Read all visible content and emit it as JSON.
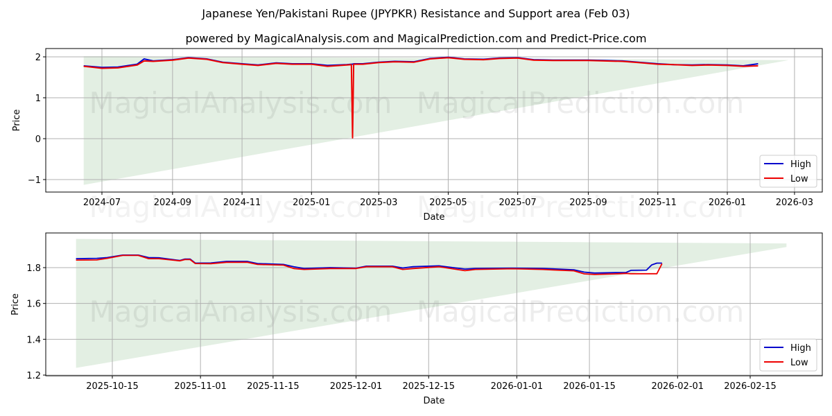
{
  "title": "Japanese Yen/Pakistani Rupee (JPYPKR) Resistance and Support area (Feb 03)",
  "subtitle": "powered by MagicalAnalysis.com and MagicalPrediction.com and Predict-Price.com",
  "watermark": [
    "MagicalAnalysis.com",
    "MagicalPrediction.com"
  ],
  "colors": {
    "high": "#0000cc",
    "low": "#ee0000",
    "band": "#e3efe3",
    "grid": "#b0b0b0"
  },
  "legend": {
    "high": "High",
    "low": "Low"
  },
  "chart_data": [
    {
      "type": "line",
      "title": "Japanese Yen/Pakistani Rupee (JPYPKR) Resistance and Support area (Feb 03)",
      "xlabel": "Date",
      "ylabel": "Price",
      "ylim": [
        -1.3,
        2.2
      ],
      "yticks": [
        -1,
        0,
        1,
        2
      ],
      "xticks": [
        "2024-07",
        "2024-09",
        "2024-11",
        "2025-01",
        "2025-03",
        "2025-05",
        "2025-07",
        "2025-09",
        "2025-11",
        "2026-01",
        "2026-03"
      ],
      "grid": true,
      "legend_position": "lower right",
      "band": {
        "start": "2024-06-15",
        "end": "2026-02-24",
        "upper_start": 2.02,
        "upper_end": 1.92,
        "lower_start": -1.13,
        "lower_end": 1.92
      },
      "x": [
        "2024-06-15",
        "2024-07-01",
        "2024-07-15",
        "2024-08-01",
        "2024-08-07",
        "2024-08-15",
        "2024-09-01",
        "2024-09-15",
        "2024-10-01",
        "2024-10-15",
        "2024-11-01",
        "2024-11-15",
        "2024-12-01",
        "2024-12-15",
        "2025-01-01",
        "2025-01-15",
        "2025-02-01",
        "2025-02-05",
        "2025-02-06",
        "2025-02-07",
        "2025-02-15",
        "2025-03-01",
        "2025-03-15",
        "2025-04-01",
        "2025-04-15",
        "2025-05-01",
        "2025-05-15",
        "2025-06-01",
        "2025-06-15",
        "2025-07-01",
        "2025-07-15",
        "2025-08-01",
        "2025-08-15",
        "2025-09-01",
        "2025-09-15",
        "2025-10-01",
        "2025-10-15",
        "2025-11-01",
        "2025-11-15",
        "2025-12-01",
        "2025-12-15",
        "2026-01-01",
        "2026-01-15",
        "2026-01-28"
      ],
      "series": [
        {
          "name": "High",
          "values": [
            1.78,
            1.74,
            1.75,
            1.82,
            1.95,
            1.9,
            1.93,
            1.98,
            1.95,
            1.87,
            1.83,
            1.8,
            1.85,
            1.83,
            1.83,
            1.79,
            1.81,
            1.82,
            1.82,
            1.83,
            1.83,
            1.87,
            1.89,
            1.88,
            1.96,
            1.99,
            1.95,
            1.94,
            1.97,
            1.98,
            1.93,
            1.92,
            1.92,
            1.92,
            1.91,
            1.9,
            1.87,
            1.83,
            1.81,
            1.8,
            1.81,
            1.8,
            1.78,
            1.83
          ]
        },
        {
          "name": "Low",
          "values": [
            1.77,
            1.72,
            1.73,
            1.8,
            1.9,
            1.89,
            1.92,
            1.97,
            1.94,
            1.86,
            1.82,
            1.79,
            1.84,
            1.82,
            1.82,
            1.77,
            1.8,
            1.81,
            0.02,
            1.82,
            1.82,
            1.86,
            1.88,
            1.87,
            1.95,
            1.98,
            1.94,
            1.93,
            1.96,
            1.97,
            1.92,
            1.91,
            1.91,
            1.91,
            1.9,
            1.89,
            1.86,
            1.82,
            1.81,
            1.79,
            1.8,
            1.79,
            1.77,
            1.78
          ]
        }
      ]
    },
    {
      "type": "line",
      "xlabel": "Date",
      "ylabel": "Price",
      "ylim": [
        1.2,
        1.99
      ],
      "yticks": [
        1.2,
        1.4,
        1.6,
        1.8
      ],
      "xticks": [
        "2025-10-15",
        "2025-11-01",
        "2025-11-15",
        "2025-12-01",
        "2025-12-15",
        "2026-01-01",
        "2026-01-15",
        "2026-02-01",
        "2026-02-15"
      ],
      "grid": true,
      "legend_position": "lower right",
      "band": {
        "start": "2025-10-08",
        "end": "2026-02-22",
        "upper_start": 1.96,
        "upper_end": 1.935,
        "lower_start": 1.24,
        "lower_end": 1.915
      },
      "x": [
        "2025-10-08",
        "2025-10-12",
        "2025-10-14",
        "2025-10-17",
        "2025-10-20",
        "2025-10-22",
        "2025-10-24",
        "2025-10-28",
        "2025-10-29",
        "2025-10-30",
        "2025-10-31",
        "2025-11-03",
        "2025-11-06",
        "2025-11-10",
        "2025-11-12",
        "2025-11-17",
        "2025-11-19",
        "2025-11-21",
        "2025-11-26",
        "2025-12-01",
        "2025-12-03",
        "2025-12-08",
        "2025-12-10",
        "2025-12-12",
        "2025-12-17",
        "2025-12-22",
        "2025-12-24",
        "2025-12-31",
        "2026-01-06",
        "2026-01-08",
        "2026-01-12",
        "2026-01-14",
        "2026-01-16",
        "2026-01-20",
        "2026-01-22",
        "2026-01-23",
        "2026-01-26",
        "2026-01-27",
        "2026-01-28",
        "2026-01-29"
      ],
      "series": [
        {
          "name": "High",
          "values": [
            1.85,
            1.852,
            1.856,
            1.87,
            1.87,
            1.856,
            1.855,
            1.84,
            1.848,
            1.848,
            1.825,
            1.826,
            1.835,
            1.835,
            1.823,
            1.818,
            1.805,
            1.795,
            1.8,
            1.797,
            1.808,
            1.808,
            1.798,
            1.805,
            1.81,
            1.792,
            1.795,
            1.797,
            1.795,
            1.793,
            1.788,
            1.775,
            1.77,
            1.772,
            1.772,
            1.785,
            1.786,
            1.815,
            1.825,
            1.825
          ]
        },
        {
          "name": "Low",
          "values": [
            1.842,
            1.843,
            1.852,
            1.868,
            1.868,
            1.85,
            1.85,
            1.838,
            1.845,
            1.845,
            1.823,
            1.822,
            1.83,
            1.83,
            1.818,
            1.814,
            1.795,
            1.79,
            1.795,
            1.795,
            1.805,
            1.805,
            1.79,
            1.795,
            1.805,
            1.783,
            1.79,
            1.794,
            1.79,
            1.787,
            1.782,
            1.765,
            1.762,
            1.765,
            1.768,
            1.766,
            1.766,
            1.766,
            1.766,
            1.822
          ]
        }
      ]
    }
  ]
}
